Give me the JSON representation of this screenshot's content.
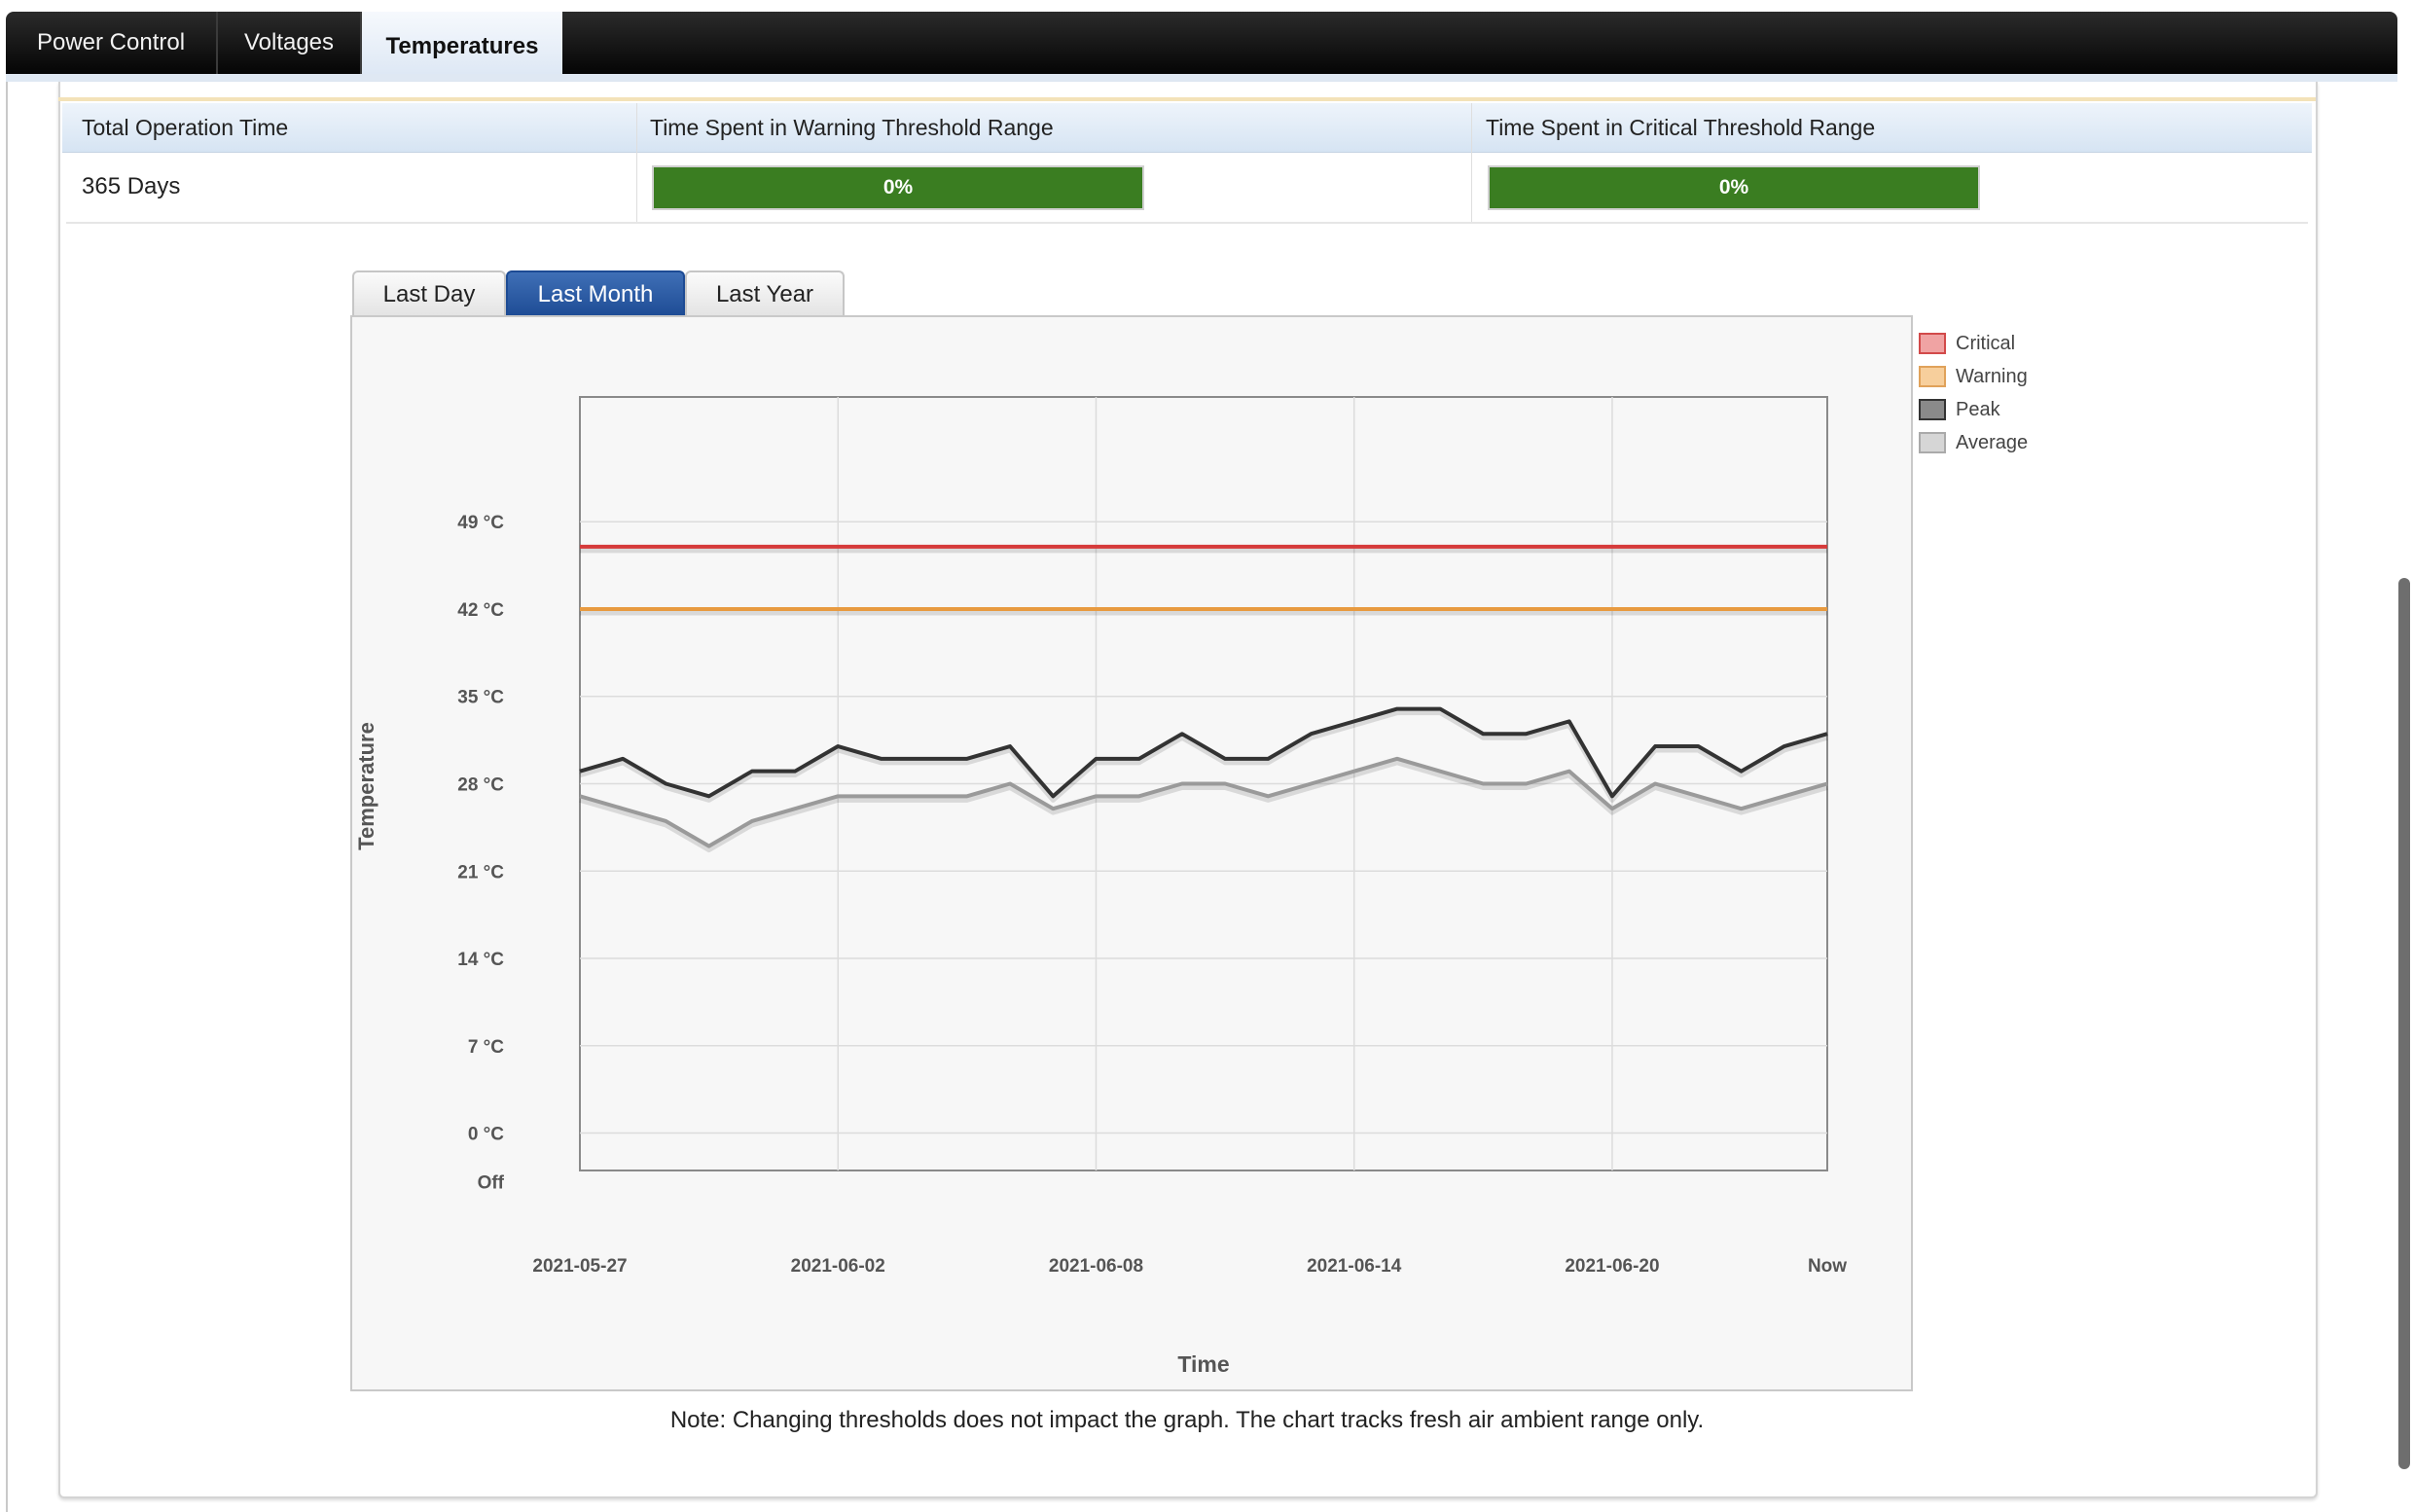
{
  "tabs": [
    "Power Control",
    "Voltages",
    "Temperatures"
  ],
  "active_tab": "Temperatures",
  "stats": {
    "headers": [
      "Total Operation Time",
      "Time Spent in Warning Threshold Range",
      "Time Spent in Critical Threshold Range"
    ],
    "operation_time": "365 Days",
    "warning_bar": {
      "label": "0%",
      "value": 0
    },
    "critical_bar": {
      "label": "0%",
      "value": 0
    }
  },
  "range_tabs": [
    "Last Day",
    "Last Month",
    "Last Year"
  ],
  "active_range": "Last Month",
  "legend": [
    {
      "label": "Critical",
      "fill": "#f0a3a3",
      "border": "#d24a4a"
    },
    {
      "label": "Warning",
      "fill": "#f7cf9c",
      "border": "#e0a25a"
    },
    {
      "label": "Peak",
      "fill": "#8a8a8a",
      "border": "#333333"
    },
    {
      "label": "Average",
      "fill": "#d6d6d6",
      "border": "#aaaaaa"
    }
  ],
  "note": "Note: Changing thresholds does not impact the graph. The chart tracks fresh air ambient range only.",
  "chart_data": {
    "type": "line",
    "xlabel": "Time",
    "ylabel": "Temperature",
    "x_ticks": [
      "2021-05-27",
      "2021-06-02",
      "2021-06-08",
      "2021-06-14",
      "2021-06-20",
      "Now"
    ],
    "y_ticks": [
      "49 °C",
      "42 °C",
      "35 °C",
      "28 °C",
      "21 °C",
      "14 °C",
      "7 °C",
      "0 °C",
      "Off"
    ],
    "ylim": [
      -3,
      59
    ],
    "x_count": 30,
    "grid": true,
    "series": [
      {
        "name": "Critical",
        "color": "#d63a3a",
        "values": [
          47,
          47,
          47,
          47,
          47,
          47,
          47,
          47,
          47,
          47,
          47,
          47,
          47,
          47,
          47,
          47,
          47,
          47,
          47,
          47,
          47,
          47,
          47,
          47,
          47,
          47,
          47,
          47,
          47,
          47
        ]
      },
      {
        "name": "Warning",
        "color": "#e89a40",
        "values": [
          42,
          42,
          42,
          42,
          42,
          42,
          42,
          42,
          42,
          42,
          42,
          42,
          42,
          42,
          42,
          42,
          42,
          42,
          42,
          42,
          42,
          42,
          42,
          42,
          42,
          42,
          42,
          42,
          42,
          42
        ]
      },
      {
        "name": "Peak",
        "color": "#333333",
        "values": [
          29,
          30,
          28,
          27,
          29,
          29,
          31,
          30,
          30,
          30,
          31,
          27,
          30,
          30,
          32,
          30,
          30,
          32,
          33,
          34,
          34,
          32,
          32,
          33,
          27,
          31,
          31,
          29,
          31,
          32
        ]
      },
      {
        "name": "Average",
        "color": "#9a9a9a",
        "values": [
          27,
          26,
          25,
          23,
          25,
          26,
          27,
          27,
          27,
          27,
          28,
          26,
          27,
          27,
          28,
          28,
          27,
          28,
          29,
          30,
          29,
          28,
          28,
          29,
          26,
          28,
          27,
          26,
          27,
          28
        ]
      }
    ]
  }
}
